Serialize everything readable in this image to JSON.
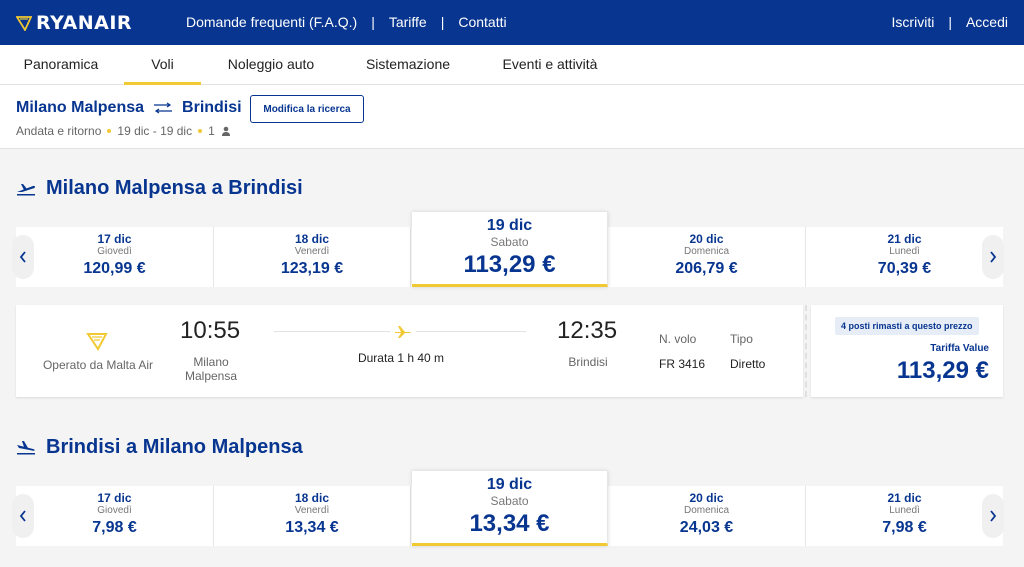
{
  "header": {
    "brand": "RYANAIR",
    "nav": [
      "Domande frequenti (F.A.Q.)",
      "Tariffe",
      "Contatti"
    ],
    "right": [
      "Iscriviti",
      "Accedi"
    ]
  },
  "subnav": {
    "tabs": [
      "Panoramica",
      "Voli",
      "Noleggio auto",
      "Sistemazione",
      "Eventi e attività"
    ],
    "active": "Voli"
  },
  "search": {
    "origin": "Milano Malpensa",
    "destination": "Brindisi",
    "modify_label": "Modifica la ricerca",
    "trip_type": "Andata e ritorno",
    "dates": "19 dic - 19 dic",
    "passengers": "1"
  },
  "outbound": {
    "title": "Milano Malpensa a Brindisi",
    "dates": [
      {
        "date": "17 dic",
        "weekday": "Giovedì",
        "price": "120,99 €"
      },
      {
        "date": "18 dic",
        "weekday": "Venerdì",
        "price": "123,19 €"
      },
      {
        "date": "19 dic",
        "weekday": "Sabato",
        "price": "113,29 €"
      },
      {
        "date": "20 dic",
        "weekday": "Domenica",
        "price": "206,79 €"
      },
      {
        "date": "21 dic",
        "weekday": "Lunedì",
        "price": "70,39 €"
      }
    ],
    "selected_index": 2,
    "flight": {
      "operator": "Operato da Malta Air",
      "depart_time": "10:55",
      "depart_city": "Milano Malpensa",
      "duration": "Durata 1 h 40 m",
      "arrive_time": "12:35",
      "arrive_city": "Brindisi",
      "flight_no_label": "N. volo",
      "flight_no": "FR 3416",
      "type_label": "Tipo",
      "type": "Diretto",
      "seats_badge": "4 posti rimasti a questo prezzo",
      "fare_label": "Tariffa Value",
      "fare_price": "113,29 €"
    }
  },
  "inbound": {
    "title": "Brindisi a Milano Malpensa",
    "dates": [
      {
        "date": "17 dic",
        "weekday": "Giovedì",
        "price": "7,98 €"
      },
      {
        "date": "18 dic",
        "weekday": "Venerdì",
        "price": "13,34 €"
      },
      {
        "date": "19 dic",
        "weekday": "Sabato",
        "price": "13,34 €"
      },
      {
        "date": "20 dic",
        "weekday": "Domenica",
        "price": "24,03 €"
      },
      {
        "date": "21 dic",
        "weekday": "Lunedì",
        "price": "7,98 €"
      }
    ],
    "selected_index": 2
  },
  "colors": {
    "brand_blue": "#073590",
    "accent_yellow": "#f1c933"
  }
}
